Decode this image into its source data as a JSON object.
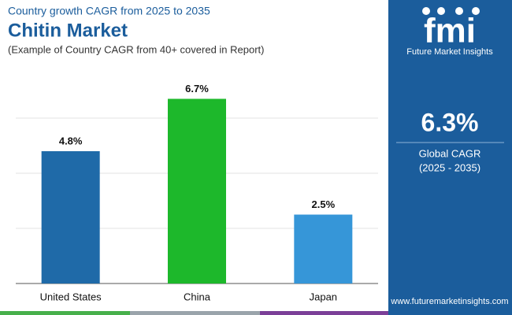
{
  "chart_data": {
    "type": "bar",
    "supertitle": "Country growth CAGR from 2025 to 2035",
    "title": "Chitin Market",
    "subtitle": "(Example of Country CAGR from 40+ covered in Report)",
    "categories": [
      "United States",
      "China",
      "Japan"
    ],
    "values": [
      4.8,
      6.7,
      2.5
    ],
    "value_labels": [
      "4.8%",
      "6.7%",
      "2.5%"
    ],
    "colors": [
      "#1f6aa8",
      "#1db82b",
      "#3696d8"
    ],
    "ylim": [
      0,
      8
    ],
    "yticks": [
      0,
      2,
      4,
      6
    ],
    "grid": true
  },
  "panel": {
    "logo": "fmi",
    "brand": "Future Market Insights",
    "highlight": "6.3%",
    "highlight_label": "Global CAGR",
    "period": "(2025 - 2035)",
    "website": "www.futuremarketinsights.com"
  }
}
